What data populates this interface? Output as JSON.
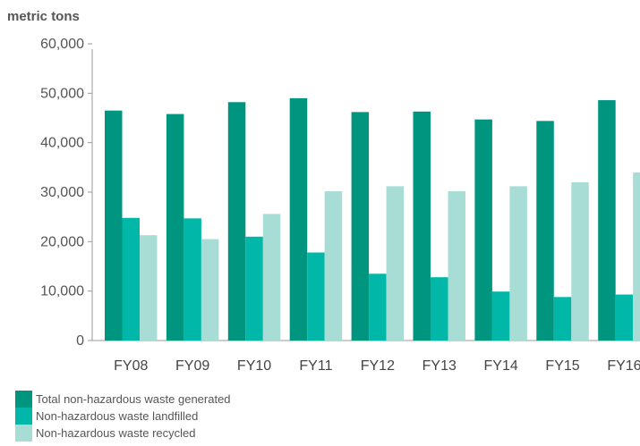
{
  "chart_data": {
    "type": "bar",
    "ylabel": "metric tons",
    "ylim": [
      0,
      60000
    ],
    "yticks": [
      0,
      10000,
      20000,
      30000,
      40000,
      50000,
      60000
    ],
    "ytick_labels": [
      "0",
      "10,000",
      "20,000",
      "30,000",
      "40,000",
      "50,000",
      "60,000"
    ],
    "categories": [
      "FY08",
      "FY09",
      "FY10",
      "FY11",
      "FY12",
      "FY13",
      "FY14",
      "FY15",
      "FY16"
    ],
    "series": [
      {
        "name": "Total non-hazardous waste generated",
        "color": "#00957f",
        "values": [
          46500,
          45800,
          48200,
          49000,
          46200,
          46300,
          44700,
          44400,
          48600
        ]
      },
      {
        "name": "Non-hazardous waste landfilled",
        "color": "#00b7a8",
        "values": [
          24800,
          24700,
          21000,
          17800,
          13500,
          12800,
          9900,
          8800,
          9300
        ]
      },
      {
        "name": "Non-hazardous waste recycled",
        "color": "#a8ddd6",
        "values": [
          21300,
          20500,
          25600,
          30200,
          31200,
          30200,
          31200,
          32000,
          34000
        ]
      }
    ],
    "legend_position": "bottom-left",
    "grid": false
  }
}
